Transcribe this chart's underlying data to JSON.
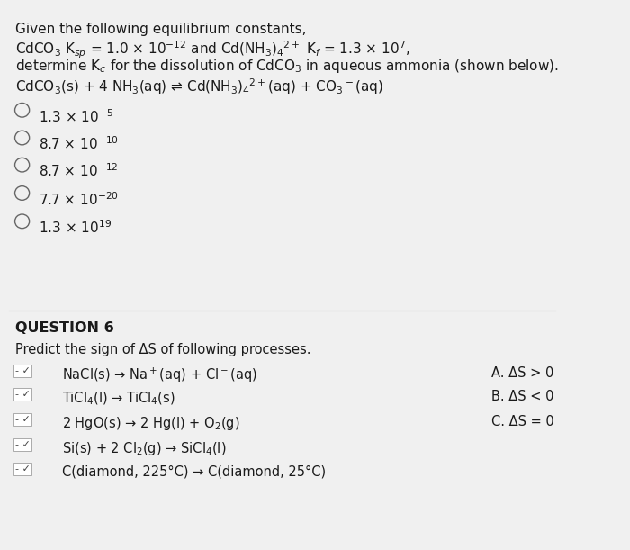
{
  "bg_color": "#f0f0f0",
  "text_color": "#1a1a1a",
  "title_line1": "Given the following equilibrium constants,",
  "title_line2": "CdCO$_3$ K$_{sp}$ = 1.0 × 10$^{-12}$ and Cd(NH$_3$)$_4$$^{2+}$ K$_f$ = 1.3 × 10$^7$,",
  "title_line3": "determine K$_c$ for the dissolution of CdCO$_3$ in aqueous ammonia (shown below).",
  "equation": "CdCO$_3$(s) + 4 NH$_3$(aq) ⇌ Cd(NH$_3$)$_4$$^{2+}$(aq) + CO$_3$$^-$(aq)",
  "choices": [
    "1.3 × 10$^{-5}$",
    "8.7 × 10$^{-10}$",
    "8.7 × 10$^{-12}$",
    "7.7 × 10$^{-20}$",
    "1.3 × 10$^{19}$"
  ],
  "q6_header": "QUESTION 6",
  "q6_intro": "Predict the sign of ΔS of following processes.",
  "q6_processes": [
    "NaCl(s) → Na$^+$(aq) + Cl$^-$(aq)",
    "TiCl$_4$(l) → TiCl$_4$(s)",
    "2 HgO(s) → 2 Hg(l) + O$_2$(g)",
    "Si(s) + 2 Cl$_2$(g) → SiCl$_4$(l)",
    "C(diamond, 225°C) → C(diamond, 25°C)"
  ],
  "q6_answers": [
    "A. ΔS > 0",
    "B. ΔS < 0",
    "C. ΔS = 0"
  ],
  "font_size_main": 11,
  "font_size_q6": 10.5
}
